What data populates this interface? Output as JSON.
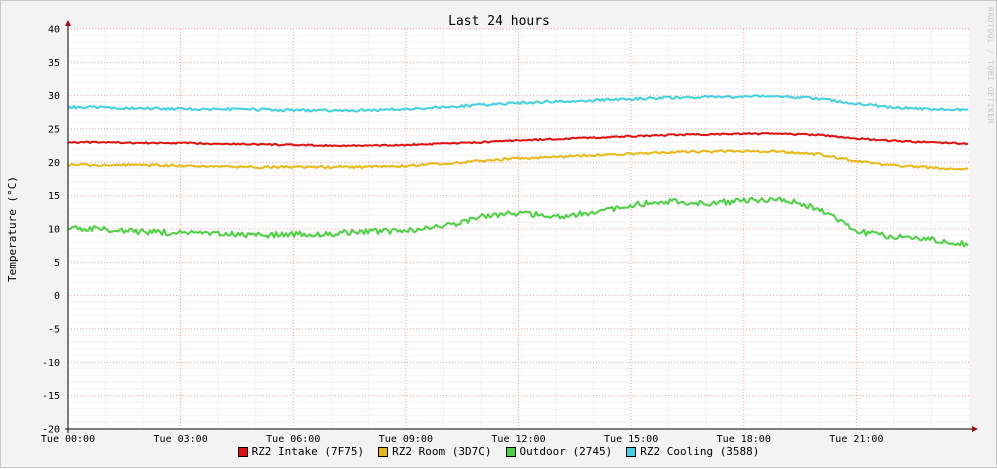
{
  "chart_data": {
    "type": "line",
    "title": "Last 24 hours",
    "ylabel": "Temperature (°C)",
    "xlabel": "",
    "watermark": "RRDTOOL / TOBI OETIKER",
    "ylim": [
      -20,
      40
    ],
    "yticks": [
      40,
      35,
      30,
      25,
      20,
      15,
      10,
      5,
      0,
      -5,
      -10,
      -15,
      -20
    ],
    "xlim": [
      0,
      24
    ],
    "xticks": [
      {
        "h": 0,
        "label": "Tue 00:00"
      },
      {
        "h": 3,
        "label": "Tue 03:00"
      },
      {
        "h": 6,
        "label": "Tue 06:00"
      },
      {
        "h": 9,
        "label": "Tue 09:00"
      },
      {
        "h": 12,
        "label": "Tue 12:00"
      },
      {
        "h": 15,
        "label": "Tue 15:00"
      },
      {
        "h": 18,
        "label": "Tue 18:00"
      },
      {
        "h": 21,
        "label": "Tue 21:00"
      }
    ],
    "grid": true,
    "legend_position": "bottom",
    "series": [
      {
        "name": "RZ2 Intake (7F75)",
        "color": "#e01010",
        "x": [
          0,
          1,
          2,
          3,
          4,
          5,
          6,
          7,
          8,
          9,
          10,
          11,
          12,
          13,
          14,
          15,
          16,
          17,
          18,
          19,
          20,
          21,
          22,
          23,
          24
        ],
        "y": [
          23.0,
          23.0,
          22.9,
          22.9,
          22.8,
          22.7,
          22.6,
          22.5,
          22.5,
          22.6,
          22.8,
          23.0,
          23.3,
          23.5,
          23.7,
          23.9,
          24.1,
          24.2,
          24.3,
          24.3,
          24.1,
          23.6,
          23.2,
          23.0,
          22.8
        ]
      },
      {
        "name": "RZ2 Room (3D7C)",
        "color": "#e8b818",
        "x": [
          0,
          1,
          2,
          3,
          4,
          5,
          6,
          7,
          8,
          9,
          10,
          11,
          12,
          13,
          14,
          15,
          16,
          17,
          18,
          19,
          20,
          21,
          22,
          23,
          24
        ],
        "y": [
          19.6,
          19.6,
          19.6,
          19.5,
          19.4,
          19.3,
          19.3,
          19.3,
          19.3,
          19.5,
          19.8,
          20.2,
          20.6,
          20.8,
          21.1,
          21.3,
          21.5,
          21.6,
          21.7,
          21.6,
          21.2,
          20.2,
          19.5,
          19.2,
          18.9
        ]
      },
      {
        "name": "Outdoor (2745)",
        "color": "#4ad040",
        "x": [
          0,
          1,
          2,
          3,
          4,
          5,
          6,
          7,
          8,
          9,
          10,
          11,
          12,
          13,
          14,
          15,
          16,
          17,
          18,
          19,
          20,
          21,
          22,
          23,
          24
        ],
        "y": [
          10.2,
          9.9,
          9.6,
          9.4,
          9.2,
          9.1,
          9.2,
          9.3,
          9.6,
          9.7,
          10.4,
          11.8,
          12.4,
          11.9,
          12.4,
          13.6,
          14.2,
          13.8,
          14.3,
          14.6,
          13.1,
          9.6,
          8.8,
          8.5,
          7.6
        ]
      },
      {
        "name": "RZ2 Cooling (3588)",
        "color": "#40d0e0",
        "x": [
          0,
          1,
          2,
          3,
          4,
          5,
          6,
          7,
          8,
          9,
          10,
          11,
          12,
          13,
          14,
          15,
          16,
          17,
          18,
          19,
          20,
          21,
          22,
          23,
          24
        ],
        "y": [
          28.3,
          28.2,
          28.1,
          28.0,
          28.0,
          27.9,
          27.8,
          27.8,
          27.8,
          28.0,
          28.3,
          28.6,
          28.9,
          29.1,
          29.3,
          29.5,
          29.7,
          29.8,
          29.9,
          29.9,
          29.6,
          28.8,
          28.2,
          28.0,
          27.9
        ]
      }
    ]
  }
}
